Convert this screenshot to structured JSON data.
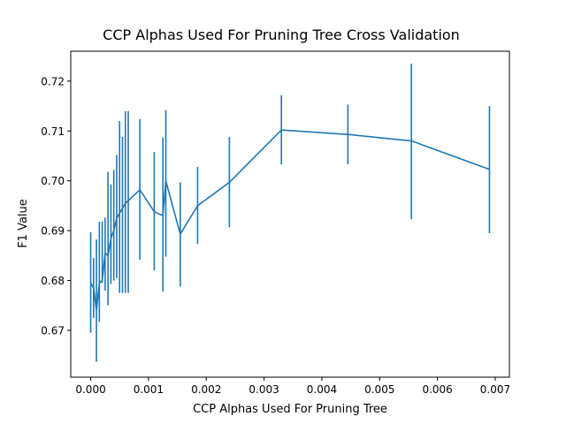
{
  "chart_data": {
    "type": "line",
    "title": "CCP Alphas Used For Pruning Tree Cross Validation",
    "xlabel": "CCP Alphas Used For Pruning Tree",
    "ylabel": "F1 Value",
    "xlim": [
      -0.000345,
      0.007245
    ],
    "ylim": [
      0.6606,
      0.726
    ],
    "x_ticks": [
      0.0,
      0.001,
      0.002,
      0.003,
      0.004,
      0.005,
      0.006,
      0.007
    ],
    "x_tick_labels": [
      "0.000",
      "0.001",
      "0.002",
      "0.003",
      "0.004",
      "0.005",
      "0.006",
      "0.007"
    ],
    "y_ticks": [
      0.67,
      0.68,
      0.69,
      0.7,
      0.71,
      0.72
    ],
    "y_tick_labels": [
      "0.67",
      "0.68",
      "0.69",
      "0.70",
      "0.71",
      "0.72"
    ],
    "grid": false,
    "color": "#1f77b4",
    "series": [
      {
        "x": [
          0.0,
          5e-05,
          0.0001,
          0.00015,
          0.0002,
          0.00025,
          0.0003,
          0.00035,
          0.0004,
          0.00045,
          0.0005,
          0.00055,
          0.0006,
          0.00065,
          0.00085,
          0.0011,
          0.00125,
          0.0013,
          0.00155,
          0.00185,
          0.0024,
          0.0033,
          0.00445,
          0.00555,
          0.0069
        ],
        "y": [
          0.6795,
          0.6785,
          0.674,
          0.6795,
          0.68,
          0.6855,
          0.685,
          0.6885,
          0.69,
          0.6925,
          0.6935,
          0.6945,
          0.6955,
          0.696,
          0.6982,
          0.6938,
          0.693,
          0.7,
          0.6893,
          0.695,
          0.6997,
          0.7102,
          0.7093,
          0.708,
          0.7023
        ],
        "err_low": [
          0.6695,
          0.6725,
          0.6637,
          0.6717,
          0.6795,
          0.678,
          0.675,
          0.6793,
          0.68,
          0.6805,
          0.6775,
          0.6775,
          0.6775,
          0.6775,
          0.6842,
          0.682,
          0.6778,
          0.6848,
          0.6788,
          0.6873,
          0.6907,
          0.7033,
          0.7033,
          0.6923,
          0.6895
        ],
        "err_high": [
          0.6897,
          0.6845,
          0.6882,
          0.6918,
          0.6918,
          0.6926,
          0.7018,
          0.6993,
          0.7022,
          0.7052,
          0.712,
          0.7088,
          0.714,
          0.714,
          0.7124,
          0.7058,
          0.7087,
          0.7142,
          0.6997,
          0.7028,
          0.7088,
          0.7172,
          0.7153,
          0.7235,
          0.715
        ]
      }
    ]
  }
}
